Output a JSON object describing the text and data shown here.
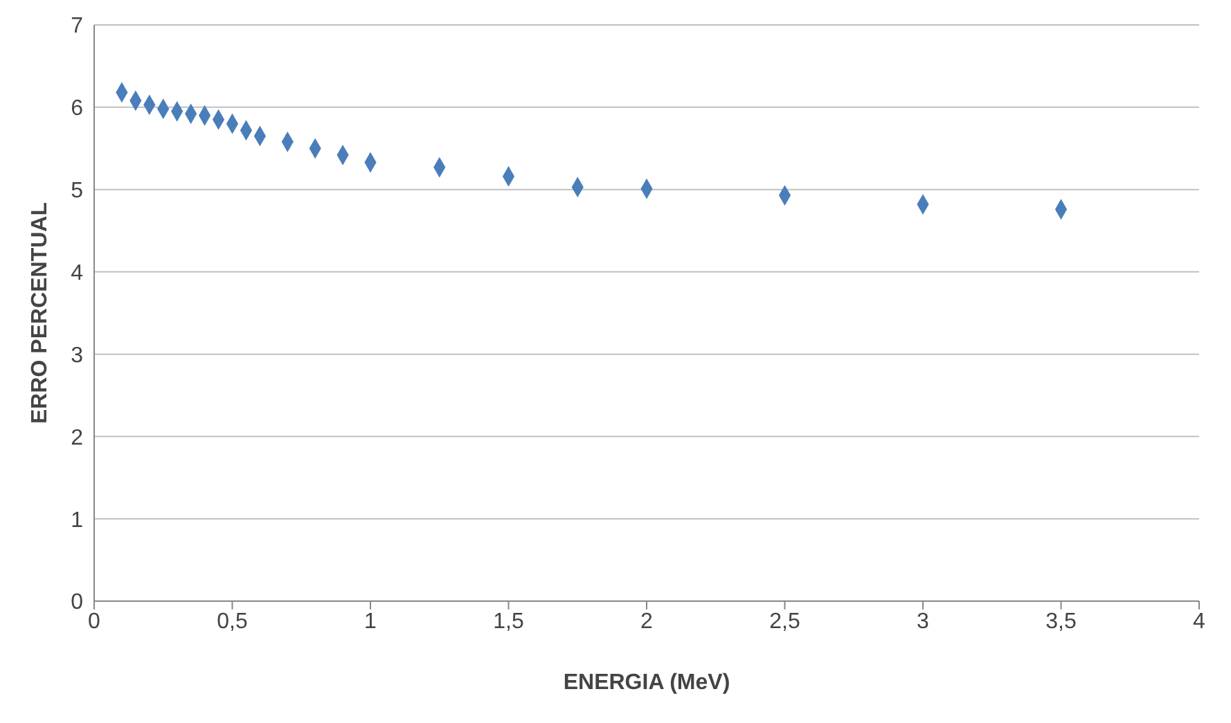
{
  "chart_data": {
    "type": "scatter",
    "xlabel": "ENERGIA (MeV)",
    "ylabel": "ERRO PERCENTUAL",
    "x": [
      0.1,
      0.15,
      0.2,
      0.25,
      0.3,
      0.35,
      0.4,
      0.45,
      0.5,
      0.55,
      0.6,
      0.7,
      0.8,
      0.9,
      1.0,
      1.25,
      1.5,
      1.75,
      2.0,
      2.5,
      3.0,
      3.5
    ],
    "series": [
      {
        "color": "#4a7ebb",
        "values": [
          6.18,
          6.08,
          6.03,
          5.98,
          5.95,
          5.92,
          5.9,
          5.85,
          5.8,
          5.72,
          5.65,
          5.58,
          5.5,
          5.42,
          5.33,
          5.27,
          5.16,
          5.03,
          5.01,
          4.93,
          4.82,
          4.76
        ]
      }
    ],
    "xlim": [
      0,
      4
    ],
    "xticks": [
      {
        "value": 0,
        "label": "0"
      },
      {
        "value": 0.5,
        "label": "0,5"
      },
      {
        "value": 1,
        "label": "1"
      },
      {
        "value": 1.5,
        "label": "1,5"
      },
      {
        "value": 2,
        "label": "2"
      },
      {
        "value": 2.5,
        "label": "2,5"
      },
      {
        "value": 3,
        "label": "3"
      },
      {
        "value": 3.5,
        "label": "3,5"
      },
      {
        "value": 4,
        "label": "4"
      }
    ],
    "ylim": [
      0,
      7
    ],
    "yticks": [
      0,
      1,
      2,
      3,
      4,
      5,
      6,
      7
    ],
    "grid": "y",
    "marker": "diamond",
    "legend": false
  }
}
